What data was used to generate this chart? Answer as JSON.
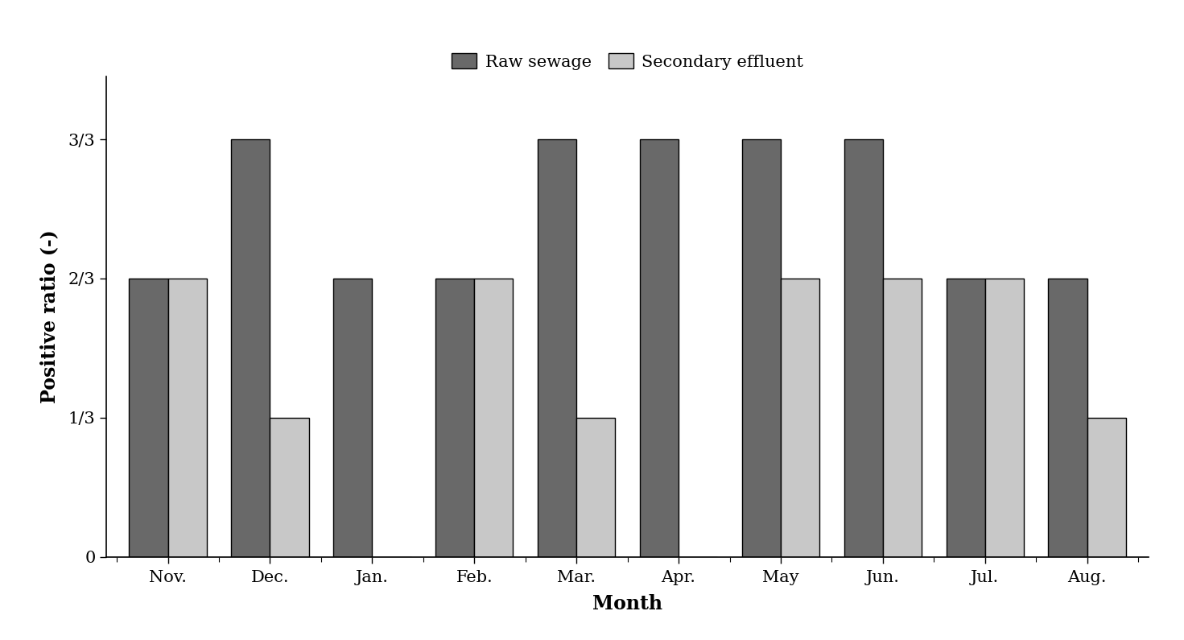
{
  "months": [
    "Nov.",
    "Dec.",
    "Jan.",
    "Feb.",
    "Mar.",
    "Apr.",
    "May",
    "Jun.",
    "Jul.",
    "Aug."
  ],
  "raw_sewage": [
    0.667,
    1.0,
    0.667,
    0.667,
    1.0,
    1.0,
    1.0,
    1.0,
    0.667,
    0.667
  ],
  "secondary_effluent": [
    0.667,
    0.333,
    0.0,
    0.667,
    0.333,
    0.0,
    0.667,
    0.667,
    0.667,
    0.333
  ],
  "raw_sewage_color": "#696969",
  "secondary_effluent_color": "#c8c8c8",
  "bar_edge_color": "#000000",
  "bar_edge_width": 1.0,
  "bar_width": 0.38,
  "ylabel": "Positive ratio (-)",
  "xlabel": "Month",
  "ytick_labels": [
    "0",
    "1/3",
    "2/3",
    "3/3"
  ],
  "ytick_values": [
    0.0,
    0.3333,
    0.6667,
    1.0
  ],
  "legend_labels": [
    "Raw sewage",
    "Secondary effluent"
  ],
  "ylim": [
    0,
    1.15
  ],
  "xlim": [
    -0.6,
    9.6
  ],
  "axis_fontsize": 17,
  "tick_fontsize": 15,
  "legend_fontsize": 15
}
